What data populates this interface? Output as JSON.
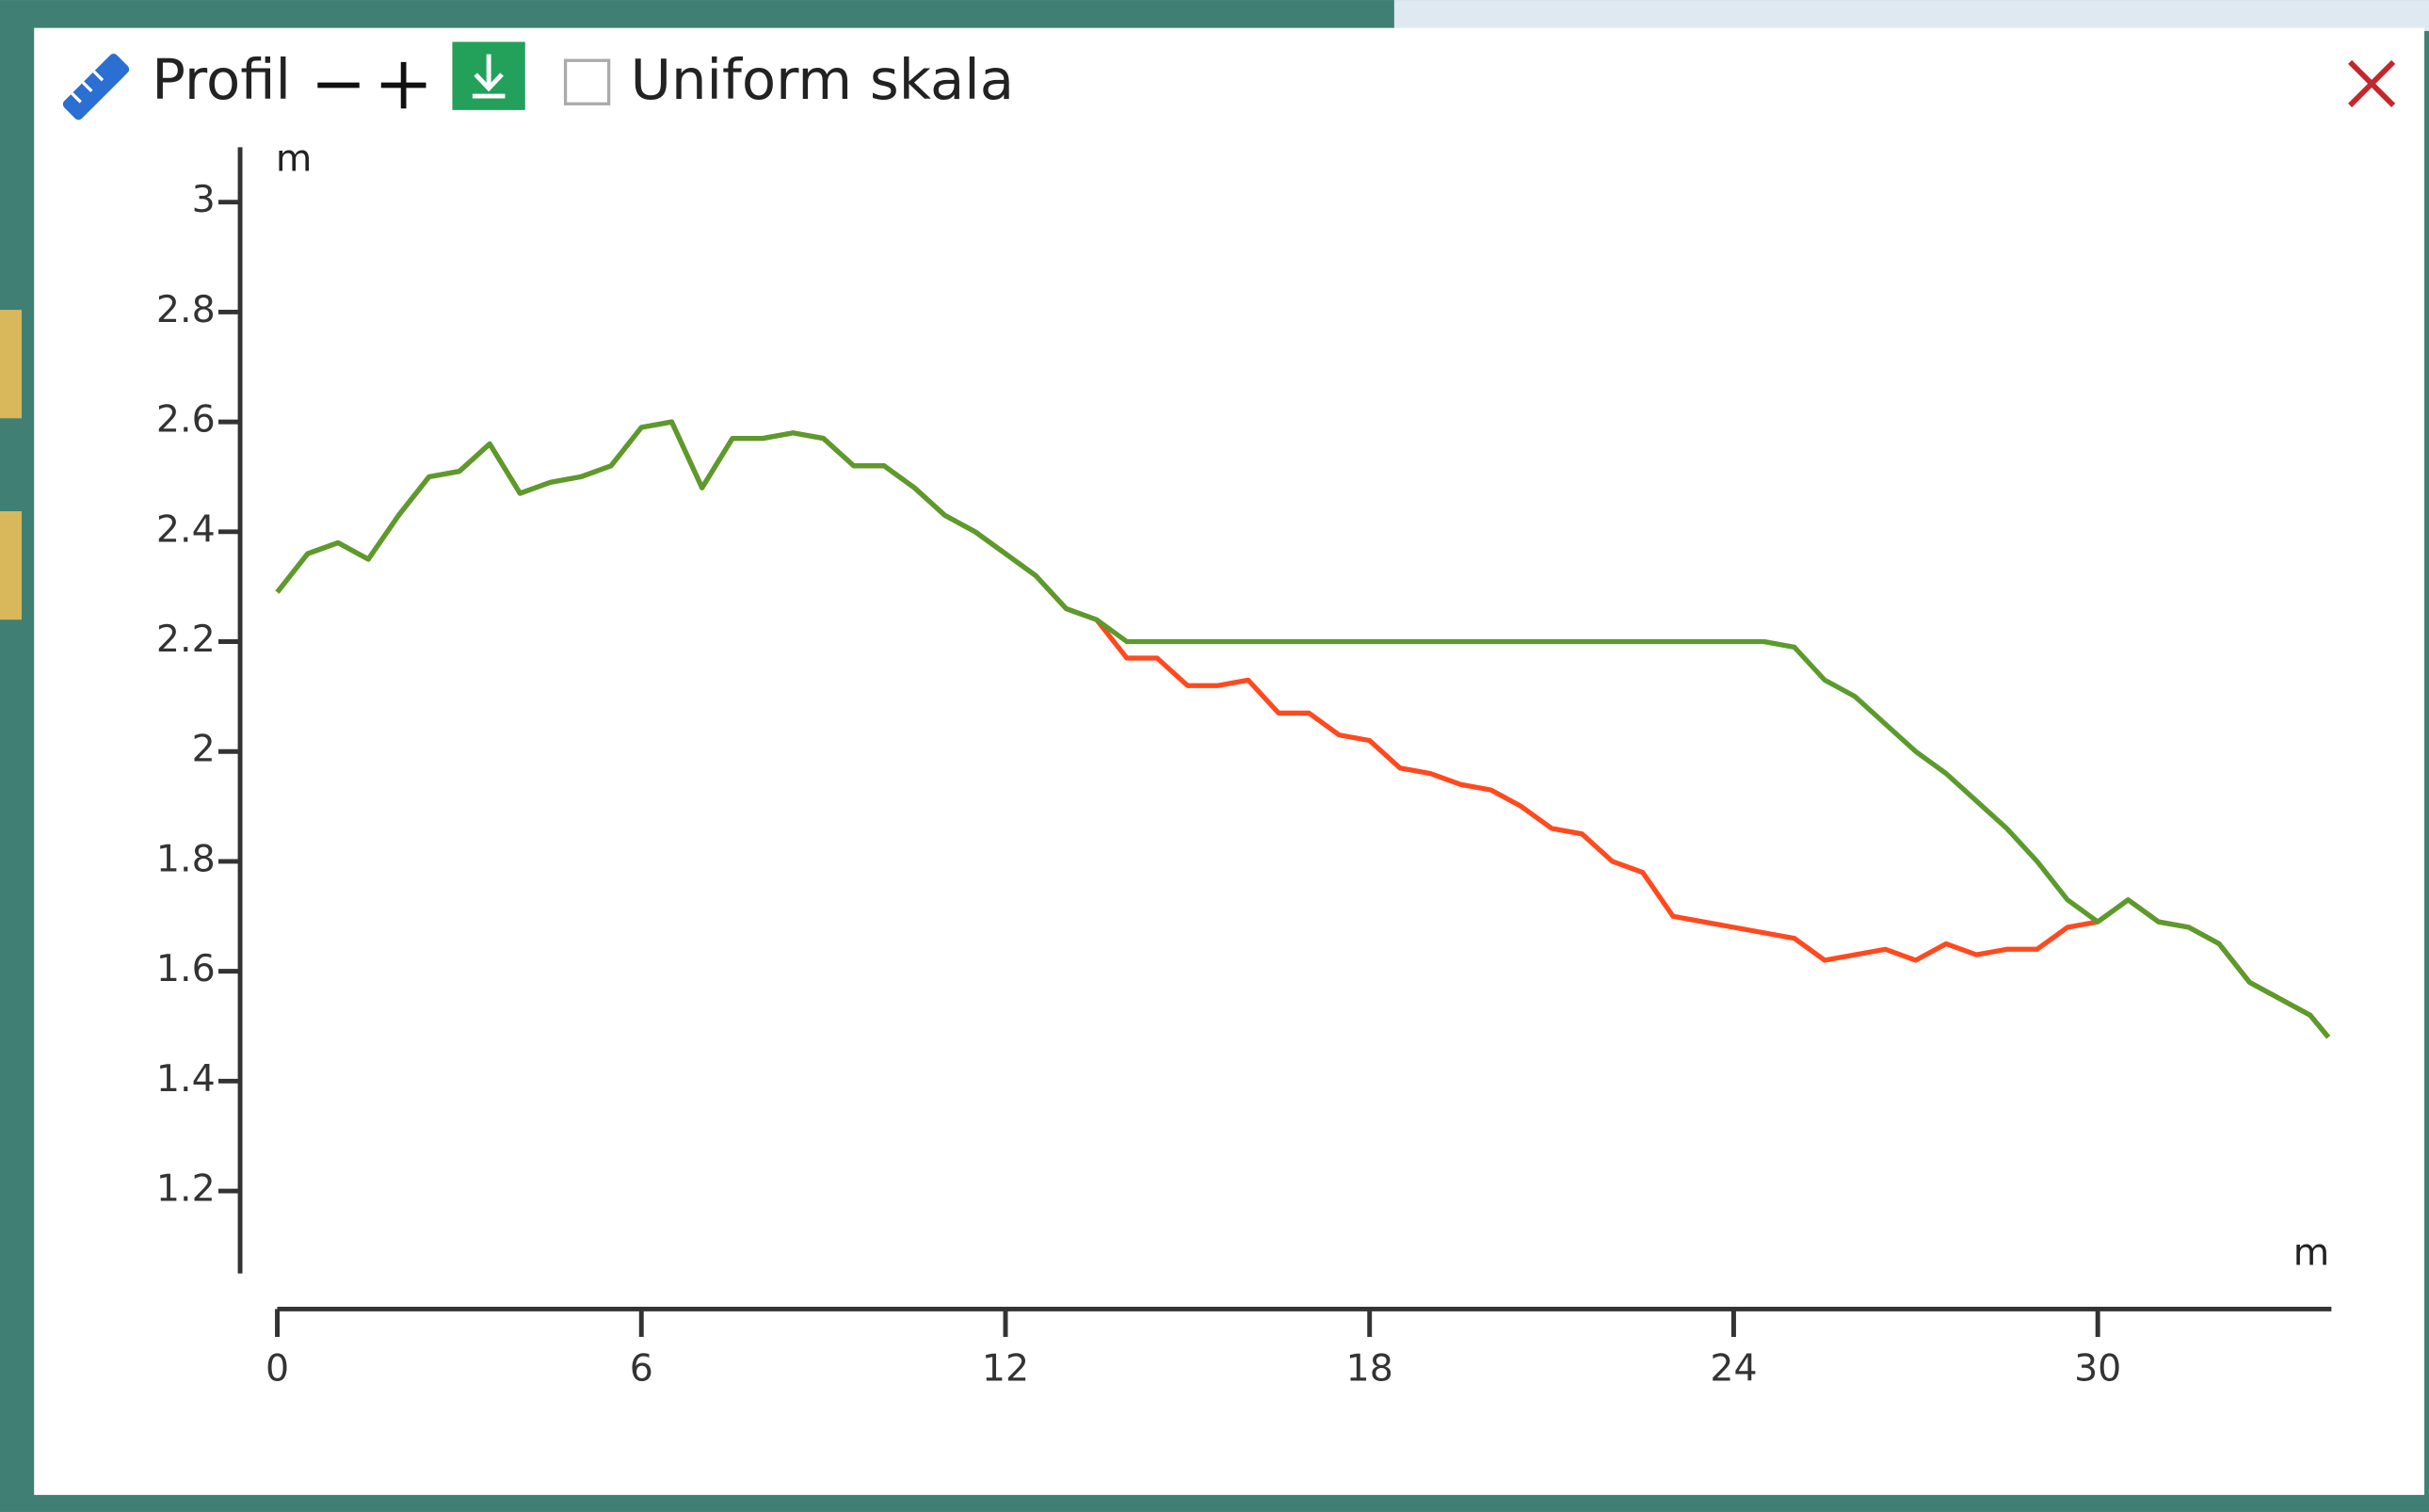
{
  "header": {
    "title": "Profil",
    "checkbox_label": "Uniform skala"
  },
  "chart_data": {
    "type": "line",
    "y_label": "m",
    "x_label": "m",
    "x": [
      0,
      0.5,
      1,
      1.5,
      2,
      2.5,
      3,
      3.5,
      4,
      4.5,
      5,
      5.5,
      6,
      6.5,
      7,
      7.5,
      8,
      8.5,
      9,
      9.5,
      10,
      10.5,
      11,
      11.5,
      12,
      12.5,
      13,
      13.5,
      14,
      14.5,
      15,
      15.5,
      16,
      16.5,
      17,
      17.5,
      18,
      18.5,
      19,
      19.5,
      20,
      20.5,
      21,
      21.5,
      22,
      22.5,
      23,
      23.5,
      24,
      24.5,
      25,
      25.5,
      26,
      26.5,
      27,
      27.5,
      28,
      28.5,
      29,
      29.5,
      30,
      30.5,
      31,
      31.5,
      32,
      32.5,
      33,
      33.5,
      33.8
    ],
    "series": [
      {
        "color": "#ff4a1f",
        "values": [
          2.29,
          2.36,
          2.38,
          2.35,
          2.43,
          2.5,
          2.51,
          2.56,
          2.47,
          2.49,
          2.5,
          2.52,
          2.59,
          2.6,
          2.48,
          2.57,
          2.57,
          2.58,
          2.57,
          2.52,
          2.52,
          2.48,
          2.43,
          2.4,
          2.36,
          2.32,
          2.26,
          2.24,
          2.17,
          2.17,
          2.12,
          2.12,
          2.13,
          2.07,
          2.07,
          2.03,
          2.02,
          1.97,
          1.96,
          1.94,
          1.93,
          1.9,
          1.86,
          1.85,
          1.8,
          1.78,
          1.7,
          1.69,
          1.68,
          1.67,
          1.66,
          1.62,
          1.63,
          1.64,
          1.62,
          1.65,
          1.63,
          1.64,
          1.64,
          1.68,
          1.69,
          1.73,
          1.69,
          1.68,
          1.65,
          1.58,
          1.55,
          1.52,
          1.48
        ]
      },
      {
        "color": "#5b9b2c",
        "values": [
          2.29,
          2.36,
          2.38,
          2.35,
          2.43,
          2.5,
          2.51,
          2.56,
          2.47,
          2.49,
          2.5,
          2.52,
          2.59,
          2.6,
          2.48,
          2.57,
          2.57,
          2.58,
          2.57,
          2.52,
          2.52,
          2.48,
          2.43,
          2.4,
          2.36,
          2.32,
          2.26,
          2.24,
          2.2,
          2.2,
          2.2,
          2.2,
          2.2,
          2.2,
          2.2,
          2.2,
          2.2,
          2.2,
          2.2,
          2.2,
          2.2,
          2.2,
          2.2,
          2.2,
          2.2,
          2.2,
          2.2,
          2.2,
          2.2,
          2.2,
          2.19,
          2.13,
          2.1,
          2.05,
          2.0,
          1.96,
          1.91,
          1.86,
          1.8,
          1.73,
          1.69,
          1.73,
          1.69,
          1.68,
          1.65,
          1.58,
          1.55,
          1.52,
          1.48
        ]
      }
    ],
    "xlim": [
      0,
      33.85
    ],
    "ylim": [
      1.05,
      3.1
    ],
    "xticks": [
      0,
      6,
      12,
      18,
      24,
      30
    ],
    "yticks": [
      1.2,
      1.4,
      1.6,
      1.8,
      2,
      2.2,
      2.4,
      2.6,
      2.8,
      3
    ]
  }
}
